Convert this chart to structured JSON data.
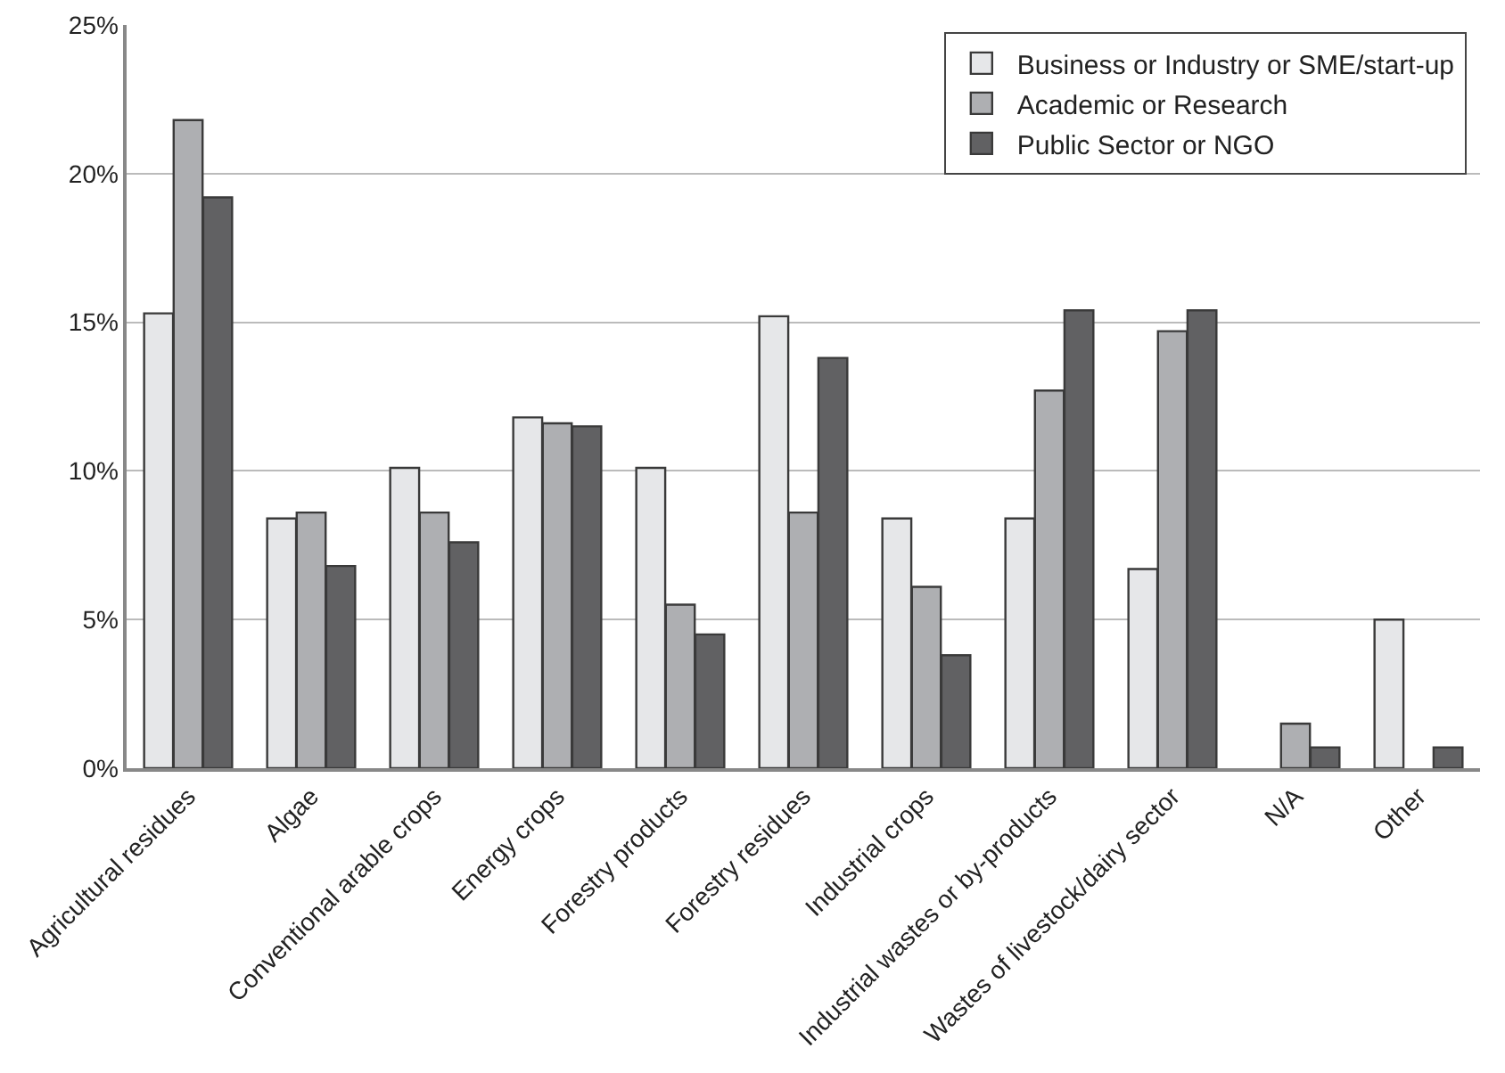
{
  "chart_data": {
    "type": "bar",
    "categories": [
      "Agricultural residues",
      "Algae",
      "Conventional arable crops",
      "Energy crops",
      "Forestry products",
      "Forestry residues",
      "Industrial crops",
      "Industrial wastes or by-products",
      "Wastes of livestock/dairy sector",
      "N/A",
      "Other"
    ],
    "series": [
      {
        "name": "Business or Industry or SME/start-up",
        "color": "#e6e7e9",
        "values": [
          15.3,
          8.4,
          10.1,
          11.8,
          10.1,
          15.2,
          8.4,
          8.4,
          6.7,
          null,
          5.0
        ]
      },
      {
        "name": "Academic or Research",
        "color": "#aeafb2",
        "values": [
          21.8,
          8.6,
          8.6,
          11.6,
          5.5,
          8.6,
          6.1,
          12.7,
          14.7,
          1.5,
          null
        ]
      },
      {
        "name": "Public Sector or NGO",
        "color": "#616163",
        "values": [
          19.2,
          6.8,
          7.6,
          11.5,
          4.5,
          13.8,
          3.8,
          15.4,
          15.4,
          0.7,
          0.7
        ]
      }
    ],
    "ylim": [
      0,
      25
    ],
    "yticks": [
      {
        "value": 0,
        "label": "0%"
      },
      {
        "value": 5,
        "label": "5%"
      },
      {
        "value": 10,
        "label": "10%"
      },
      {
        "value": 15,
        "label": "15%"
      },
      {
        "value": 20,
        "label": "20%"
      },
      {
        "value": 25,
        "label": "25%"
      }
    ],
    "grid": "y",
    "legend": "top right"
  }
}
